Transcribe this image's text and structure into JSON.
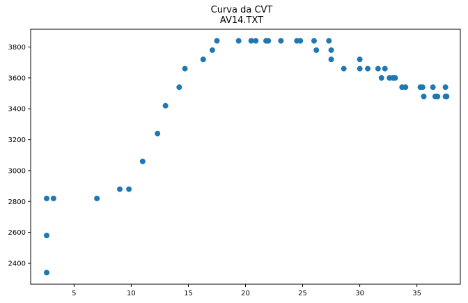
{
  "chart_data": {
    "type": "scatter",
    "title": "Curva da CVT",
    "subtitle": "AV14.TXT",
    "xlabel": "",
    "ylabel": "",
    "xlim": [
      1.2,
      38.8
    ],
    "ylim": [
      2265,
      3915
    ],
    "xticks": [
      5,
      10,
      15,
      20,
      25,
      30,
      35
    ],
    "yticks": [
      2400,
      2600,
      2800,
      3000,
      3200,
      3400,
      3600,
      3800
    ],
    "grid": false,
    "marker_color": "#1f77b4",
    "series": [
      {
        "points": [
          [
            2.6,
            2340
          ],
          [
            2.6,
            2580
          ],
          [
            2.6,
            2820
          ],
          [
            3.2,
            2820
          ],
          [
            7.0,
            2820
          ],
          [
            9.0,
            2880
          ],
          [
            9.8,
            2880
          ],
          [
            11.0,
            3060
          ],
          [
            12.3,
            3240
          ],
          [
            13.0,
            3420
          ],
          [
            14.2,
            3540
          ],
          [
            14.7,
            3660
          ],
          [
            16.3,
            3720
          ],
          [
            17.1,
            3780
          ],
          [
            17.5,
            3840
          ],
          [
            19.4,
            3840
          ],
          [
            20.5,
            3840
          ],
          [
            20.9,
            3840
          ],
          [
            21.8,
            3840
          ],
          [
            22.0,
            3840
          ],
          [
            23.1,
            3840
          ],
          [
            24.5,
            3840
          ],
          [
            24.8,
            3840
          ],
          [
            26.0,
            3840
          ],
          [
            27.3,
            3840
          ],
          [
            26.2,
            3780
          ],
          [
            27.5,
            3780
          ],
          [
            27.5,
            3720
          ],
          [
            28.6,
            3660
          ],
          [
            30.0,
            3720
          ],
          [
            30.0,
            3660
          ],
          [
            30.7,
            3660
          ],
          [
            31.6,
            3660
          ],
          [
            32.2,
            3660
          ],
          [
            31.9,
            3600
          ],
          [
            32.6,
            3600
          ],
          [
            32.9,
            3600
          ],
          [
            33.1,
            3600
          ],
          [
            33.7,
            3540
          ],
          [
            34.0,
            3540
          ],
          [
            35.3,
            3540
          ],
          [
            35.5,
            3540
          ],
          [
            36.4,
            3540
          ],
          [
            37.5,
            3540
          ],
          [
            35.6,
            3480
          ],
          [
            36.6,
            3480
          ],
          [
            36.8,
            3480
          ],
          [
            37.5,
            3480
          ],
          [
            37.6,
            3480
          ]
        ]
      }
    ]
  }
}
